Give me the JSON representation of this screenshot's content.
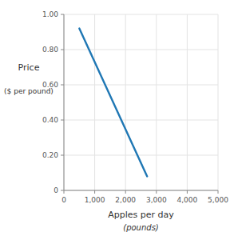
{
  "chart_data": {
    "type": "line",
    "xlabel": "Apples per day",
    "xlabel2": "(pounds)",
    "ylabel": "Price",
    "ylabel2": "($ per pound)",
    "x": [
      500,
      2700
    ],
    "values": [
      0.92,
      0.08
    ],
    "xlim": [
      0,
      5000
    ],
    "ylim": [
      0,
      1.0
    ],
    "xticks": [
      0,
      {
        "value": 1000,
        "label": "1,000"
      },
      {
        "value": 2000,
        "label": "2,000"
      },
      {
        "value": 3000,
        "label": "3,000"
      },
      {
        "value": 4000,
        "label": "4,000"
      },
      {
        "value": 5000,
        "label": "5,000"
      }
    ],
    "yticks": [
      0,
      {
        "value": 0.2,
        "label": "0.20"
      },
      {
        "value": 0.4,
        "label": "0.40"
      },
      {
        "value": 0.6,
        "label": "0.60"
      },
      {
        "value": 0.8,
        "label": "0.80"
      },
      {
        "value": 1.0,
        "label": "1.00"
      }
    ],
    "grid": true
  }
}
